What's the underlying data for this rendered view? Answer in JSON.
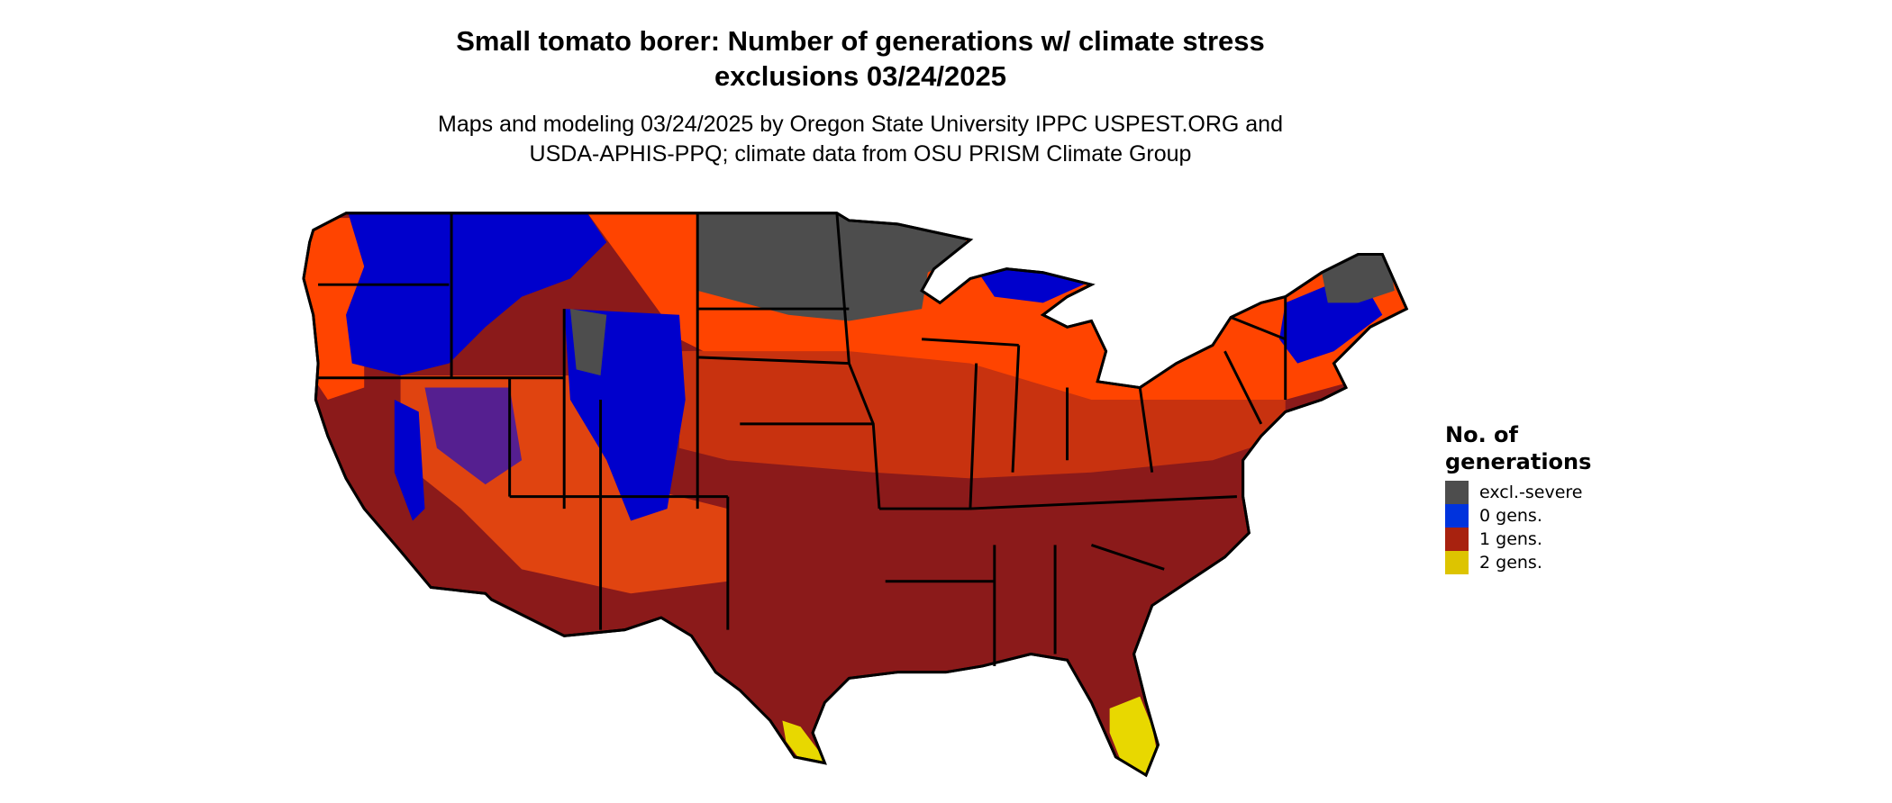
{
  "title": {
    "line1": "Small tomato borer: Number of generations w/ climate stress",
    "line2": "exclusions 03/24/2025"
  },
  "subtitle": {
    "line1": "Maps and modeling 03/24/2025 by Oregon State University IPPC USPEST.ORG and",
    "line2": "USDA-APHIS-PPQ; climate data from OSU PRISM Climate Group"
  },
  "legend": {
    "title_line1": "No. of",
    "title_line2": "generations",
    "items": [
      {
        "label": "excl.-severe",
        "color": "#4d4d4d"
      },
      {
        "label": "0 gens.",
        "color": "#0033dd"
      },
      {
        "label": "1 gens.",
        "color": "#a8220f"
      },
      {
        "label": "2 gens.",
        "color": "#ddc400"
      }
    ]
  },
  "map_colors": {
    "deep_red": "#8b1a1a",
    "mid_red": "#c8320f",
    "orange": "#ff4400",
    "blue": "#0000cc",
    "gray": "#4d4d4d",
    "yellow": "#e8d800"
  }
}
